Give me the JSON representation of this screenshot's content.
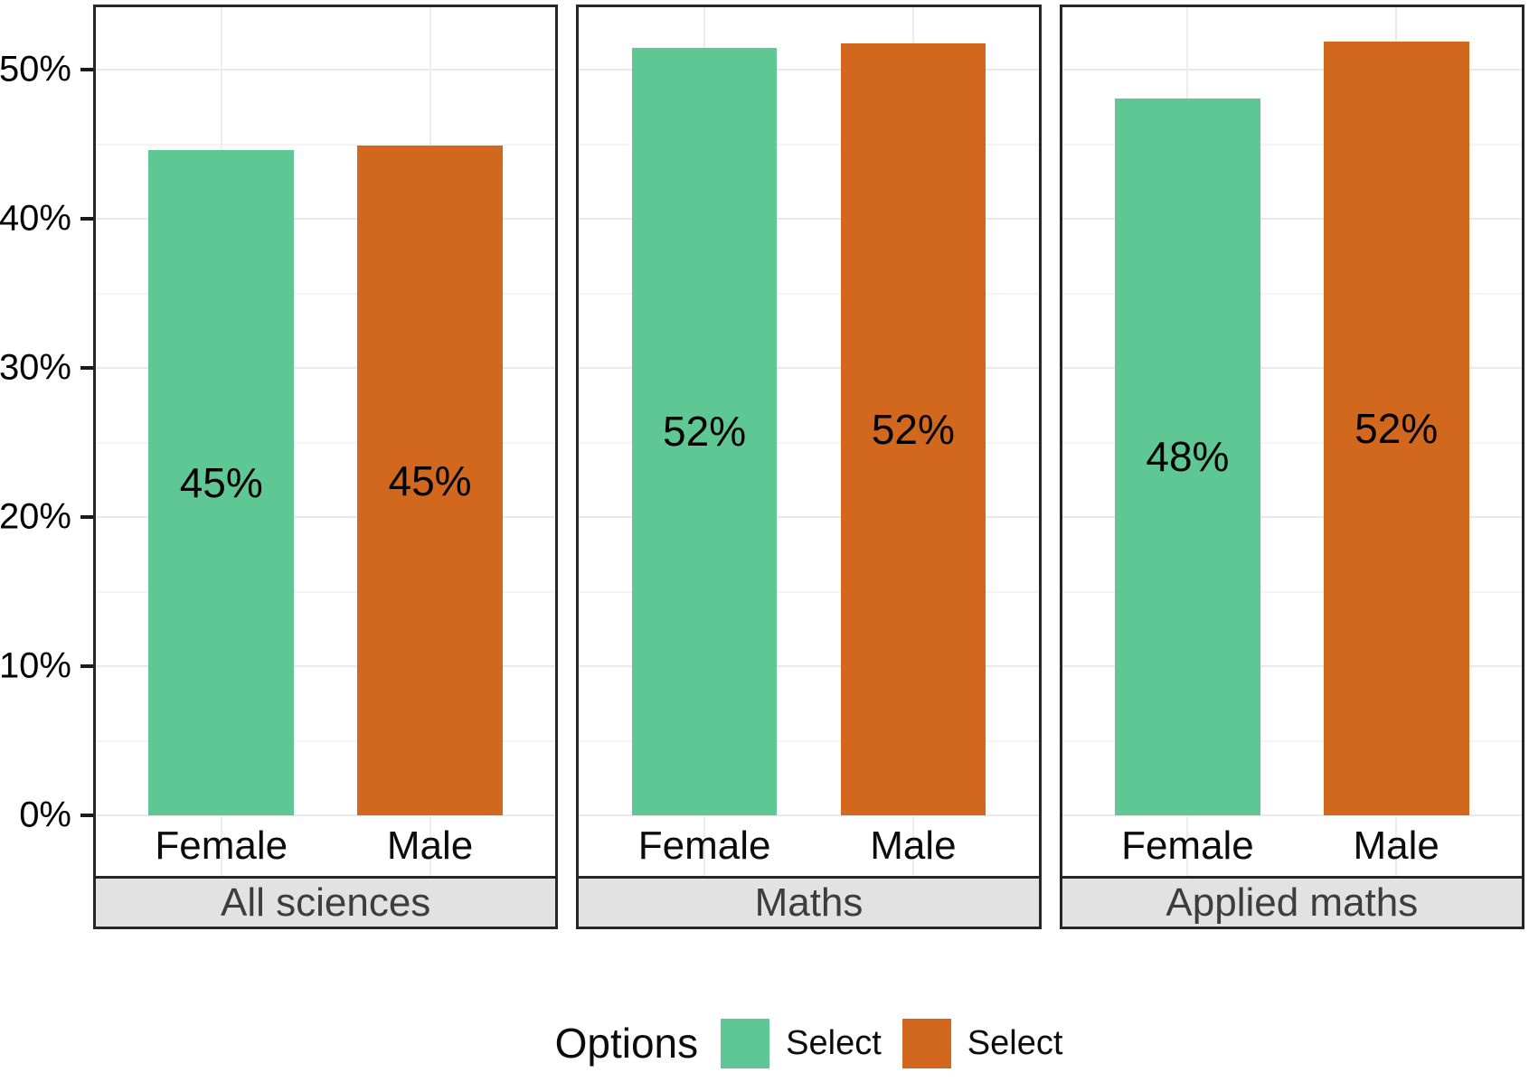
{
  "chart_data": {
    "type": "bar",
    "title": "",
    "facets": [
      {
        "label": "All sciences",
        "categories": [
          "Female",
          "Male"
        ],
        "values": [
          45,
          45
        ],
        "value_labels": [
          "45%",
          "45%"
        ],
        "display_values": [
          44.6,
          44.9
        ]
      },
      {
        "label": "Maths",
        "categories": [
          "Female",
          "Male"
        ],
        "values": [
          52,
          52
        ],
        "value_labels": [
          "52%",
          "52%"
        ],
        "display_values": [
          51.5,
          51.8
        ]
      },
      {
        "label": "Applied maths",
        "categories": [
          "Female",
          "Male"
        ],
        "values": [
          48,
          52
        ],
        "value_labels": [
          "48%",
          "52%"
        ],
        "display_values": [
          48.1,
          51.9
        ]
      }
    ],
    "series": [
      {
        "name": "Select",
        "color": "#5FC794"
      },
      {
        "name": "Select",
        "color": "#D2671E"
      }
    ],
    "y_axis": {
      "ticks": [
        "0%",
        "10%",
        "20%",
        "30%",
        "40%",
        "50%"
      ],
      "tick_values": [
        0,
        10,
        20,
        30,
        40,
        50
      ],
      "minor_values": [
        5,
        15,
        25,
        35,
        45
      ],
      "ylim": [
        0,
        54.2
      ]
    },
    "legend": {
      "title": "Options",
      "position": "bottom",
      "items": [
        {
          "label": "Select",
          "color": "#5FC794"
        },
        {
          "label": "Select",
          "color": "#D2671E"
        }
      ]
    },
    "grid": true
  },
  "style": {
    "background": "#ffffff",
    "panel_border": "#262626",
    "strip_background": "#e2e2e2",
    "strip_text": "#3d3d3d",
    "gridline_major": "#e9e9e9",
    "gridline_minor": "#f4f4f4",
    "axis_text": "#000000",
    "bar_label_color": "#000000"
  }
}
